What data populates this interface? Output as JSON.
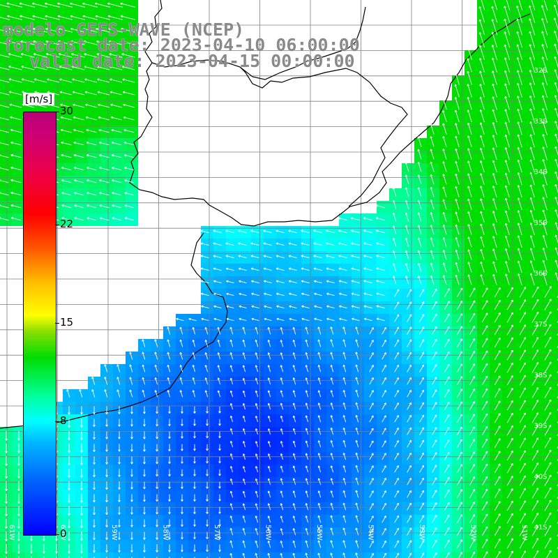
{
  "header": {
    "model_line": "modelo GEFS-WAVE (NCEP)",
    "forecast_line": "forecast date: 2023-04-10 06:00:00",
    "valid_line": "valid date: 2023-04-15 00:00:00"
  },
  "colorbar": {
    "unit": "[m/s]",
    "ticks": [
      {
        "label": "30",
        "value": 30
      },
      {
        "label": "22",
        "value": 22
      },
      {
        "label": "15",
        "value": 15
      },
      {
        "label": "8",
        "value": 8
      },
      {
        "label": "0",
        "value": 0
      }
    ],
    "range": [
      0,
      30
    ]
  },
  "map": {
    "lat_labels": [
      "32S",
      "33S",
      "34S",
      "35S",
      "36S",
      "37S",
      "38S",
      "39S",
      "40S",
      "41S"
    ],
    "lon_labels": [
      "61W",
      "60W",
      "59W",
      "58W",
      "57W",
      "56W",
      "55W",
      "54W",
      "53W",
      "52W",
      "51W"
    ],
    "colors": {
      "land": "#ffffff",
      "grid": "#7f7f7f",
      "coast": "#000000",
      "vector": "#ffffff"
    }
  }
}
